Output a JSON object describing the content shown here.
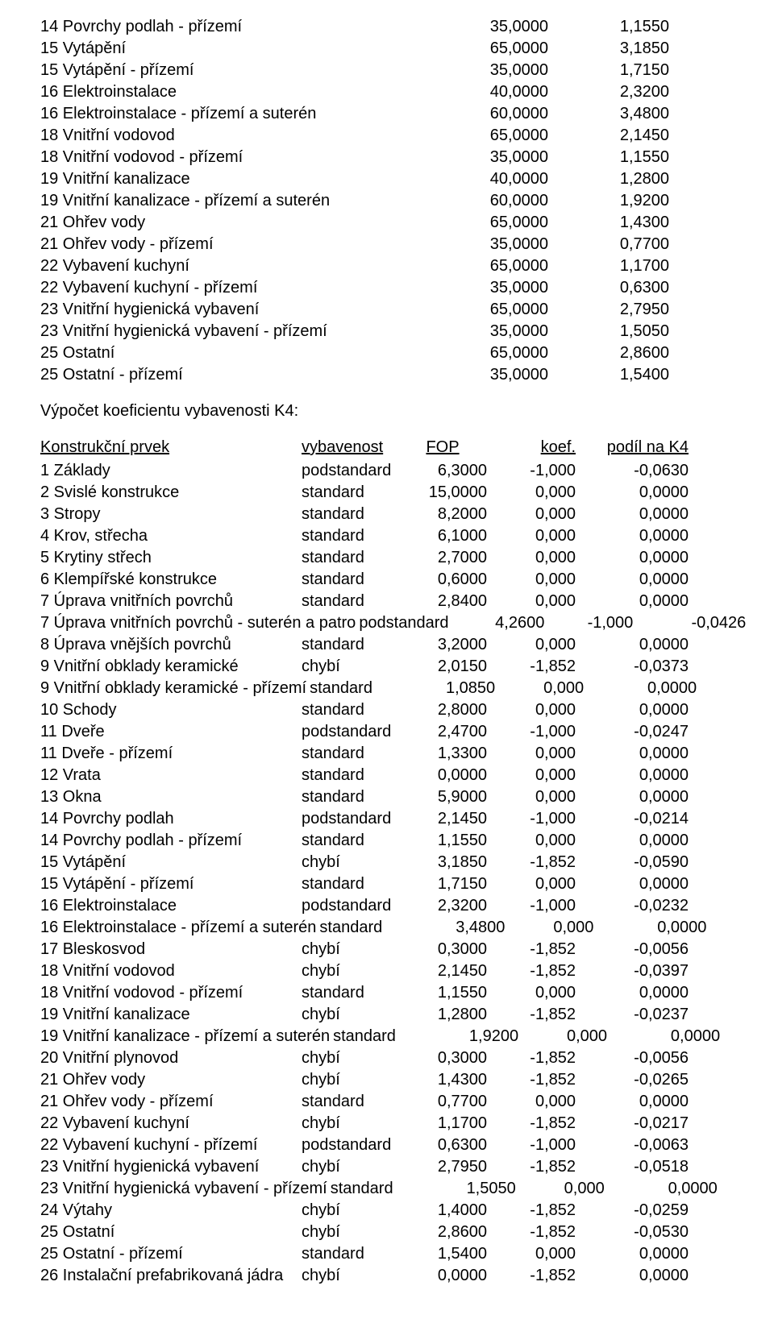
{
  "table1": {
    "rows": [
      {
        "label": "14 Povrchy podlah - přízemí",
        "v1": "35,0000",
        "v2": "1,1550"
      },
      {
        "label": "15 Vytápění",
        "v1": "65,0000",
        "v2": "3,1850"
      },
      {
        "label": "15 Vytápění - přízemí",
        "v1": "35,0000",
        "v2": "1,7150"
      },
      {
        "label": "16 Elektroinstalace",
        "v1": "40,0000",
        "v2": "2,3200"
      },
      {
        "label": "16 Elektroinstalace - přízemí a suterén",
        "v1": "60,0000",
        "v2": "3,4800"
      },
      {
        "label": "18 Vnitřní vodovod",
        "v1": "65,0000",
        "v2": "2,1450"
      },
      {
        "label": "18 Vnitřní vodovod - přízemí",
        "v1": "35,0000",
        "v2": "1,1550"
      },
      {
        "label": "19 Vnitřní kanalizace",
        "v1": "40,0000",
        "v2": "1,2800"
      },
      {
        "label": "19 Vnitřní kanalizace - přízemí a suterén",
        "v1": "60,0000",
        "v2": "1,9200"
      },
      {
        "label": "21 Ohřev vody",
        "v1": "65,0000",
        "v2": "1,4300"
      },
      {
        "label": "21 Ohřev vody - přízemí",
        "v1": "35,0000",
        "v2": "0,7700"
      },
      {
        "label": "22 Vybavení kuchyní",
        "v1": "65,0000",
        "v2": "1,1700"
      },
      {
        "label": "22 Vybavení kuchyní - přízemí",
        "v1": "35,0000",
        "v2": "0,6300"
      },
      {
        "label": "23 Vnitřní hygienická vybavení",
        "v1": "65,0000",
        "v2": "2,7950"
      },
      {
        "label": "23 Vnitřní hygienická vybavení - přízemí",
        "v1": "35,0000",
        "v2": "1,5050"
      },
      {
        "label": "25 Ostatní",
        "v1": "65,0000",
        "v2": "2,8600"
      },
      {
        "label": "25 Ostatní - přízemí",
        "v1": "35,0000",
        "v2": "1,5400"
      }
    ]
  },
  "section_title": "Výpočet koeficientu vybavenosti K4:",
  "table2": {
    "header": {
      "label": "Konstrukční prvek",
      "vyb": "vybavenost",
      "fop": "FOP",
      "koef": "koef.",
      "podil": "podíl na K4"
    },
    "rows": [
      {
        "label": "1 Základy",
        "vyb": "podstandard",
        "fop": "6,3000",
        "koef": "-1,000",
        "podil": "-0,0630"
      },
      {
        "label": "2 Svislé konstrukce",
        "vyb": "standard",
        "fop": "15,0000",
        "koef": "0,000",
        "podil": "0,0000"
      },
      {
        "label": "3 Stropy",
        "vyb": "standard",
        "fop": "8,2000",
        "koef": "0,000",
        "podil": "0,0000"
      },
      {
        "label": "4 Krov, střecha",
        "vyb": "standard",
        "fop": "6,1000",
        "koef": "0,000",
        "podil": "0,0000"
      },
      {
        "label": "5 Krytiny střech",
        "vyb": "standard",
        "fop": "2,7000",
        "koef": "0,000",
        "podil": "0,0000"
      },
      {
        "label": "6 Klempířské konstrukce",
        "vyb": "standard",
        "fop": "0,6000",
        "koef": "0,000",
        "podil": "0,0000"
      },
      {
        "label": "7 Úprava vnitřních povrchů",
        "vyb": "standard",
        "fop": "2,8400",
        "koef": "0,000",
        "podil": "0,0000"
      },
      {
        "label": "7 Úprava vnitřních povrchů - suterén a patro",
        "vyb": "podstandard",
        "fop": "4,2600",
        "koef": "-1,000",
        "podil": "-0,0426"
      },
      {
        "label": "8 Úprava vnějších povrchů",
        "vyb": "standard",
        "fop": "3,2000",
        "koef": "0,000",
        "podil": "0,0000"
      },
      {
        "label": "9 Vnitřní obklady keramické",
        "vyb": "chybí",
        "fop": "2,0150",
        "koef": "-1,852",
        "podil": "-0,0373"
      },
      {
        "label": "9 Vnitřní obklady keramické - přízemí",
        "vyb": "standard",
        "fop": "1,0850",
        "koef": "0,000",
        "podil": "0,0000"
      },
      {
        "label": "10 Schody",
        "vyb": "standard",
        "fop": "2,8000",
        "koef": "0,000",
        "podil": "0,0000"
      },
      {
        "label": "11 Dveře",
        "vyb": "podstandard",
        "fop": "2,4700",
        "koef": "-1,000",
        "podil": "-0,0247"
      },
      {
        "label": "11 Dveře - přízemí",
        "vyb": "standard",
        "fop": "1,3300",
        "koef": "0,000",
        "podil": "0,0000"
      },
      {
        "label": "12 Vrata",
        "vyb": "standard",
        "fop": "0,0000",
        "koef": "0,000",
        "podil": "0,0000"
      },
      {
        "label": "13 Okna",
        "vyb": "standard",
        "fop": "5,9000",
        "koef": "0,000",
        "podil": "0,0000"
      },
      {
        "label": "14 Povrchy podlah",
        "vyb": "podstandard",
        "fop": "2,1450",
        "koef": "-1,000",
        "podil": "-0,0214"
      },
      {
        "label": "14 Povrchy podlah - přízemí",
        "vyb": "standard",
        "fop": "1,1550",
        "koef": "0,000",
        "podil": "0,0000"
      },
      {
        "label": "15 Vytápění",
        "vyb": "chybí",
        "fop": "3,1850",
        "koef": "-1,852",
        "podil": "-0,0590"
      },
      {
        "label": "15 Vytápění - přízemí",
        "vyb": "standard",
        "fop": "1,7150",
        "koef": "0,000",
        "podil": "0,0000"
      },
      {
        "label": "16 Elektroinstalace",
        "vyb": "podstandard",
        "fop": "2,3200",
        "koef": "-1,000",
        "podil": "-0,0232"
      },
      {
        "label": "16 Elektroinstalace - přízemí a suterén",
        "vyb": "standard",
        "fop": "3,4800",
        "koef": "0,000",
        "podil": "0,0000"
      },
      {
        "label": "17 Bleskosvod",
        "vyb": "chybí",
        "fop": "0,3000",
        "koef": "-1,852",
        "podil": "-0,0056"
      },
      {
        "label": "18 Vnitřní vodovod",
        "vyb": "chybí",
        "fop": "2,1450",
        "koef": "-1,852",
        "podil": "-0,0397"
      },
      {
        "label": "18 Vnitřní vodovod - přízemí",
        "vyb": "standard",
        "fop": "1,1550",
        "koef": "0,000",
        "podil": "0,0000"
      },
      {
        "label": "19 Vnitřní kanalizace",
        "vyb": "chybí",
        "fop": "1,2800",
        "koef": "-1,852",
        "podil": "-0,0237"
      },
      {
        "label": "19 Vnitřní kanalizace - přízemí a suterén",
        "vyb": "standard",
        "fop": "1,9200",
        "koef": "0,000",
        "podil": "0,0000"
      },
      {
        "label": "20 Vnitřní plynovod",
        "vyb": "chybí",
        "fop": "0,3000",
        "koef": "-1,852",
        "podil": "-0,0056"
      },
      {
        "label": "21 Ohřev vody",
        "vyb": "chybí",
        "fop": "1,4300",
        "koef": "-1,852",
        "podil": "-0,0265"
      },
      {
        "label": "21 Ohřev vody - přízemí",
        "vyb": "standard",
        "fop": "0,7700",
        "koef": "0,000",
        "podil": "0,0000"
      },
      {
        "label": "22 Vybavení kuchyní",
        "vyb": "chybí",
        "fop": "1,1700",
        "koef": "-1,852",
        "podil": "-0,0217"
      },
      {
        "label": "22 Vybavení kuchyní - přízemí",
        "vyb": "podstandard",
        "fop": "0,6300",
        "koef": "-1,000",
        "podil": "-0,0063"
      },
      {
        "label": "23 Vnitřní hygienická vybavení",
        "vyb": "chybí",
        "fop": "2,7950",
        "koef": "-1,852",
        "podil": "-0,0518"
      },
      {
        "label": "23 Vnitřní hygienická vybavení - přízemí",
        "vyb": "standard",
        "fop": "1,5050",
        "koef": "0,000",
        "podil": "0,0000"
      },
      {
        "label": "24 Výtahy",
        "vyb": "chybí",
        "fop": "1,4000",
        "koef": "-1,852",
        "podil": "-0,0259"
      },
      {
        "label": "25 Ostatní",
        "vyb": "chybí",
        "fop": "2,8600",
        "koef": "-1,852",
        "podil": "-0,0530"
      },
      {
        "label": "25 Ostatní - přízemí",
        "vyb": "standard",
        "fop": "1,5400",
        "koef": "0,000",
        "podil": "0,0000"
      },
      {
        "label": "26 Instalační prefabrikovaná jádra",
        "vyb": "chybí",
        "fop": "0,0000",
        "koef": "-1,852",
        "podil": "0,0000"
      }
    ]
  }
}
